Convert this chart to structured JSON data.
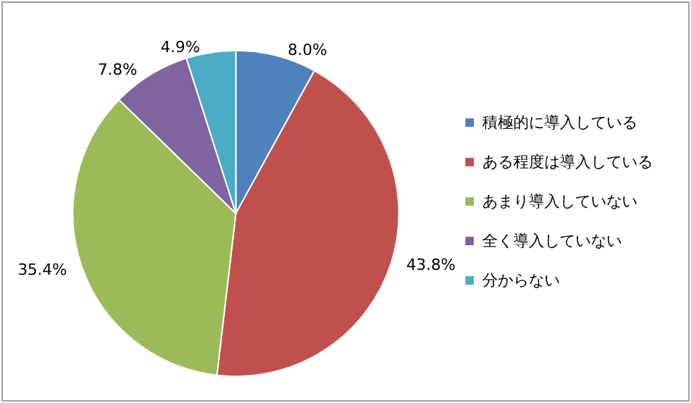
{
  "chart_data": {
    "type": "pie",
    "categories": [
      "積極的に導入している",
      "ある程度は導入している",
      "あまり導入していない",
      "全く導入していない",
      "分からない"
    ],
    "values": [
      8.0,
      43.8,
      35.4,
      7.8,
      4.9
    ],
    "colors": [
      "#4f81bd",
      "#c0504d",
      "#9bbb59",
      "#8064a2",
      "#4bacc6"
    ],
    "value_labels": [
      "8.0%",
      "43.8%",
      "35.4%",
      "7.8%",
      "4.9%"
    ],
    "legend": "right"
  }
}
